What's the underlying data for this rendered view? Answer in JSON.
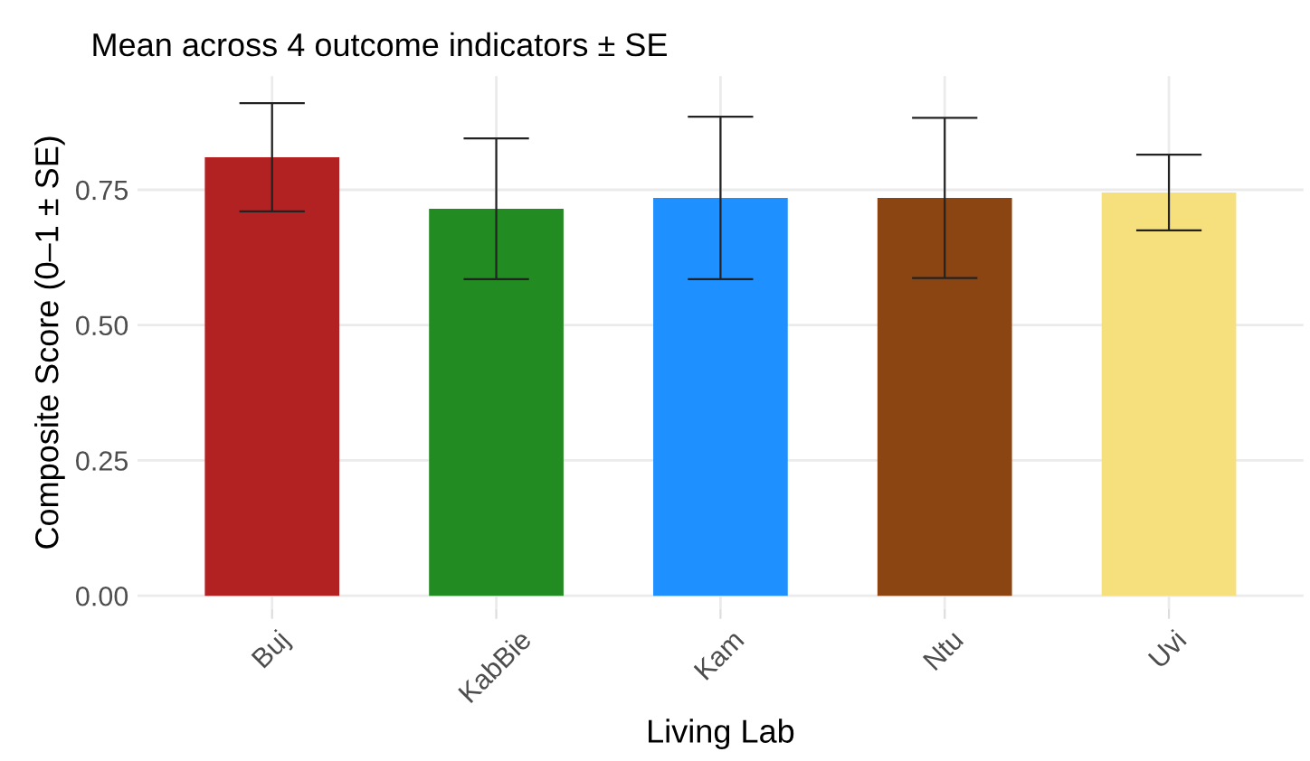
{
  "chart_data": {
    "type": "bar",
    "title": "Mean across 4 outcome indicators ± SE",
    "xlabel": "Living Lab",
    "ylabel": "Composite Score (0–1 ± SE)",
    "categories": [
      "Buj",
      "KabBie",
      "Kam",
      "Ntu",
      "Uvi"
    ],
    "values": [
      0.81,
      0.715,
      0.735,
      0.735,
      0.745
    ],
    "errors": [
      0.1,
      0.13,
      0.15,
      0.148,
      0.07
    ],
    "colors": [
      "#b22222",
      "#228b22",
      "#1e90ff",
      "#8b4513",
      "#f5e07d"
    ],
    "ylim": [
      -0.024,
      0.96
    ],
    "yticks": [
      {
        "value": 0,
        "label": "0.00"
      },
      {
        "value": 0.25,
        "label": "0.25"
      },
      {
        "value": 0.5,
        "label": "0.50"
      },
      {
        "value": 0.75,
        "label": "0.75"
      }
    ],
    "grid": true
  }
}
